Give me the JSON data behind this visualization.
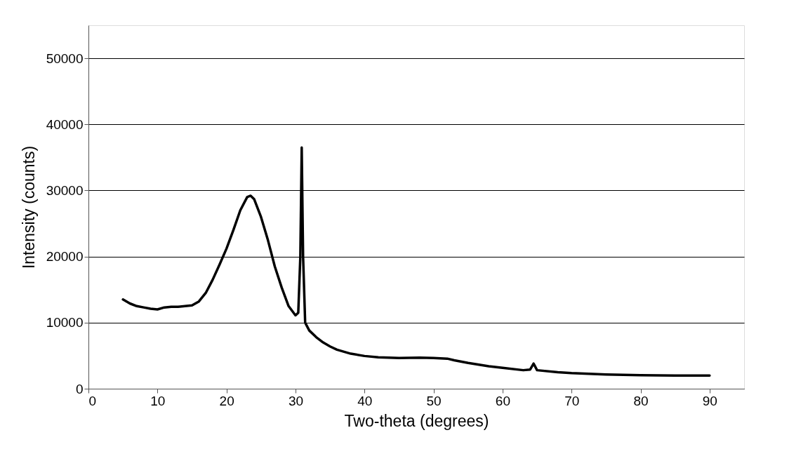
{
  "chart_data": {
    "type": "line",
    "xlabel": "Two-theta (degrees)",
    "ylabel": "Intensity (counts)",
    "xlim": [
      0,
      95
    ],
    "xticks": [
      0,
      10,
      20,
      30,
      40,
      50,
      60,
      70,
      80,
      90
    ],
    "ylim": [
      0,
      55000
    ],
    "yticks": [
      0,
      10000,
      20000,
      30000,
      40000,
      50000
    ],
    "grid": "y",
    "marker": "none",
    "line_style": "solid",
    "series": [
      {
        "color": "#000000",
        "x": [
          5,
          6,
          7,
          8,
          9,
          10,
          11,
          12,
          13,
          14,
          15,
          16,
          17,
          18,
          19,
          20,
          21,
          22,
          23,
          23.5,
          24,
          25,
          26,
          27,
          28,
          29,
          30,
          30.4,
          30.7,
          30.9,
          31.1,
          31.4,
          32,
          33,
          34,
          35,
          36,
          38,
          40,
          42,
          45,
          48,
          50,
          52,
          53,
          55,
          58,
          60,
          63,
          64,
          64.5,
          65,
          68,
          70,
          75,
          80,
          85,
          90
        ],
        "values": [
          13500,
          12900,
          12500,
          12300,
          12100,
          12000,
          12300,
          12400,
          12400,
          12500,
          12600,
          13200,
          14500,
          16500,
          18800,
          21200,
          24000,
          27000,
          29000,
          29200,
          28700,
          26000,
          22500,
          18500,
          15300,
          12500,
          11100,
          11500,
          20000,
          36500,
          20000,
          10000,
          8800,
          7800,
          7000,
          6400,
          5900,
          5300,
          4950,
          4750,
          4650,
          4700,
          4650,
          4550,
          4300,
          3900,
          3400,
          3150,
          2800,
          2900,
          3800,
          2800,
          2500,
          2350,
          2150,
          2050,
          2000,
          2000
        ]
      }
    ]
  }
}
